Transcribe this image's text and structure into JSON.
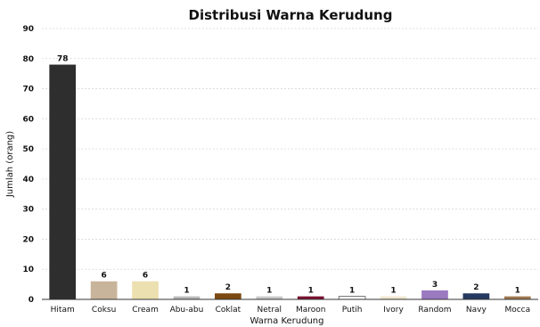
{
  "chart_data": {
    "type": "bar",
    "title": "Distribusi Warna Kerudung",
    "xlabel": "Warna Kerudung",
    "ylabel": "Jumlah (orang)",
    "ylim": [
      0,
      90
    ],
    "yticks": [
      0,
      10,
      20,
      30,
      40,
      50,
      60,
      70,
      80,
      90
    ],
    "grid": true,
    "categories": [
      "Hitam",
      "Coksu",
      "Cream",
      "Abu-abu",
      "Coklat",
      "Netral",
      "Maroon",
      "Putih",
      "Ivory",
      "Random",
      "Navy",
      "Mocca"
    ],
    "values": [
      78,
      6,
      6,
      1,
      2,
      1,
      1,
      1,
      1,
      3,
      2,
      1
    ],
    "colors": [
      "#2e2e2e",
      "#c8b49a",
      "#ece0b0",
      "#b9b9b9",
      "#7a4a12",
      "#c8c8c8",
      "#7a1030",
      "#ffffff",
      "#efe6cf",
      "#9a7ac0",
      "#253a60",
      "#a0784f"
    ]
  }
}
